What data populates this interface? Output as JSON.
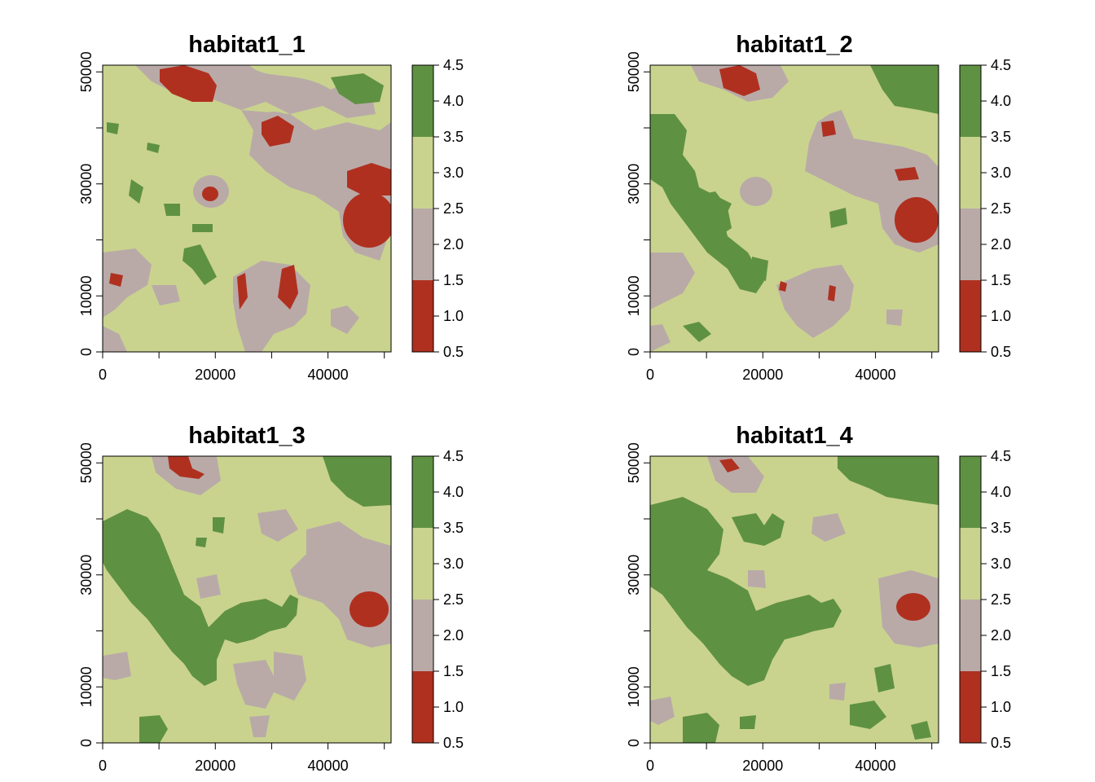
{
  "figure": {
    "panels": [
      {
        "title": "habitat1_1"
      },
      {
        "title": "habitat1_2"
      },
      {
        "title": "habitat1_3"
      },
      {
        "title": "habitat1_4"
      }
    ],
    "x_ticks": [
      "0",
      "20000",
      "40000"
    ],
    "x_tick_values": [
      0,
      20000,
      40000
    ],
    "y_ticks": [
      "0",
      "10000",
      "30000",
      "50000"
    ],
    "y_tick_values": [
      0,
      10000,
      30000,
      50000
    ],
    "x_range": [
      0,
      51200
    ],
    "y_range": [
      0,
      51200
    ],
    "legend_labels": [
      "0.5",
      "1.0",
      "1.5",
      "2.0",
      "2.5",
      "3.0",
      "3.5",
      "4.0",
      "4.5"
    ],
    "legend_values": [
      0.5,
      1.0,
      1.5,
      2.0,
      2.5,
      3.0,
      3.5,
      4.0,
      4.5
    ],
    "classes": [
      {
        "value": 1,
        "range": [
          0.5,
          1.5
        ],
        "color": "#b03020"
      },
      {
        "value": 2,
        "range": [
          1.5,
          2.5
        ],
        "color": "#b9aaa8"
      },
      {
        "value": 3,
        "range": [
          2.5,
          3.5
        ],
        "color": "#c9d38e"
      },
      {
        "value": 4,
        "range": [
          3.5,
          4.5
        ],
        "color": "#5f9143"
      }
    ],
    "background_color": "#c9d38e"
  }
}
